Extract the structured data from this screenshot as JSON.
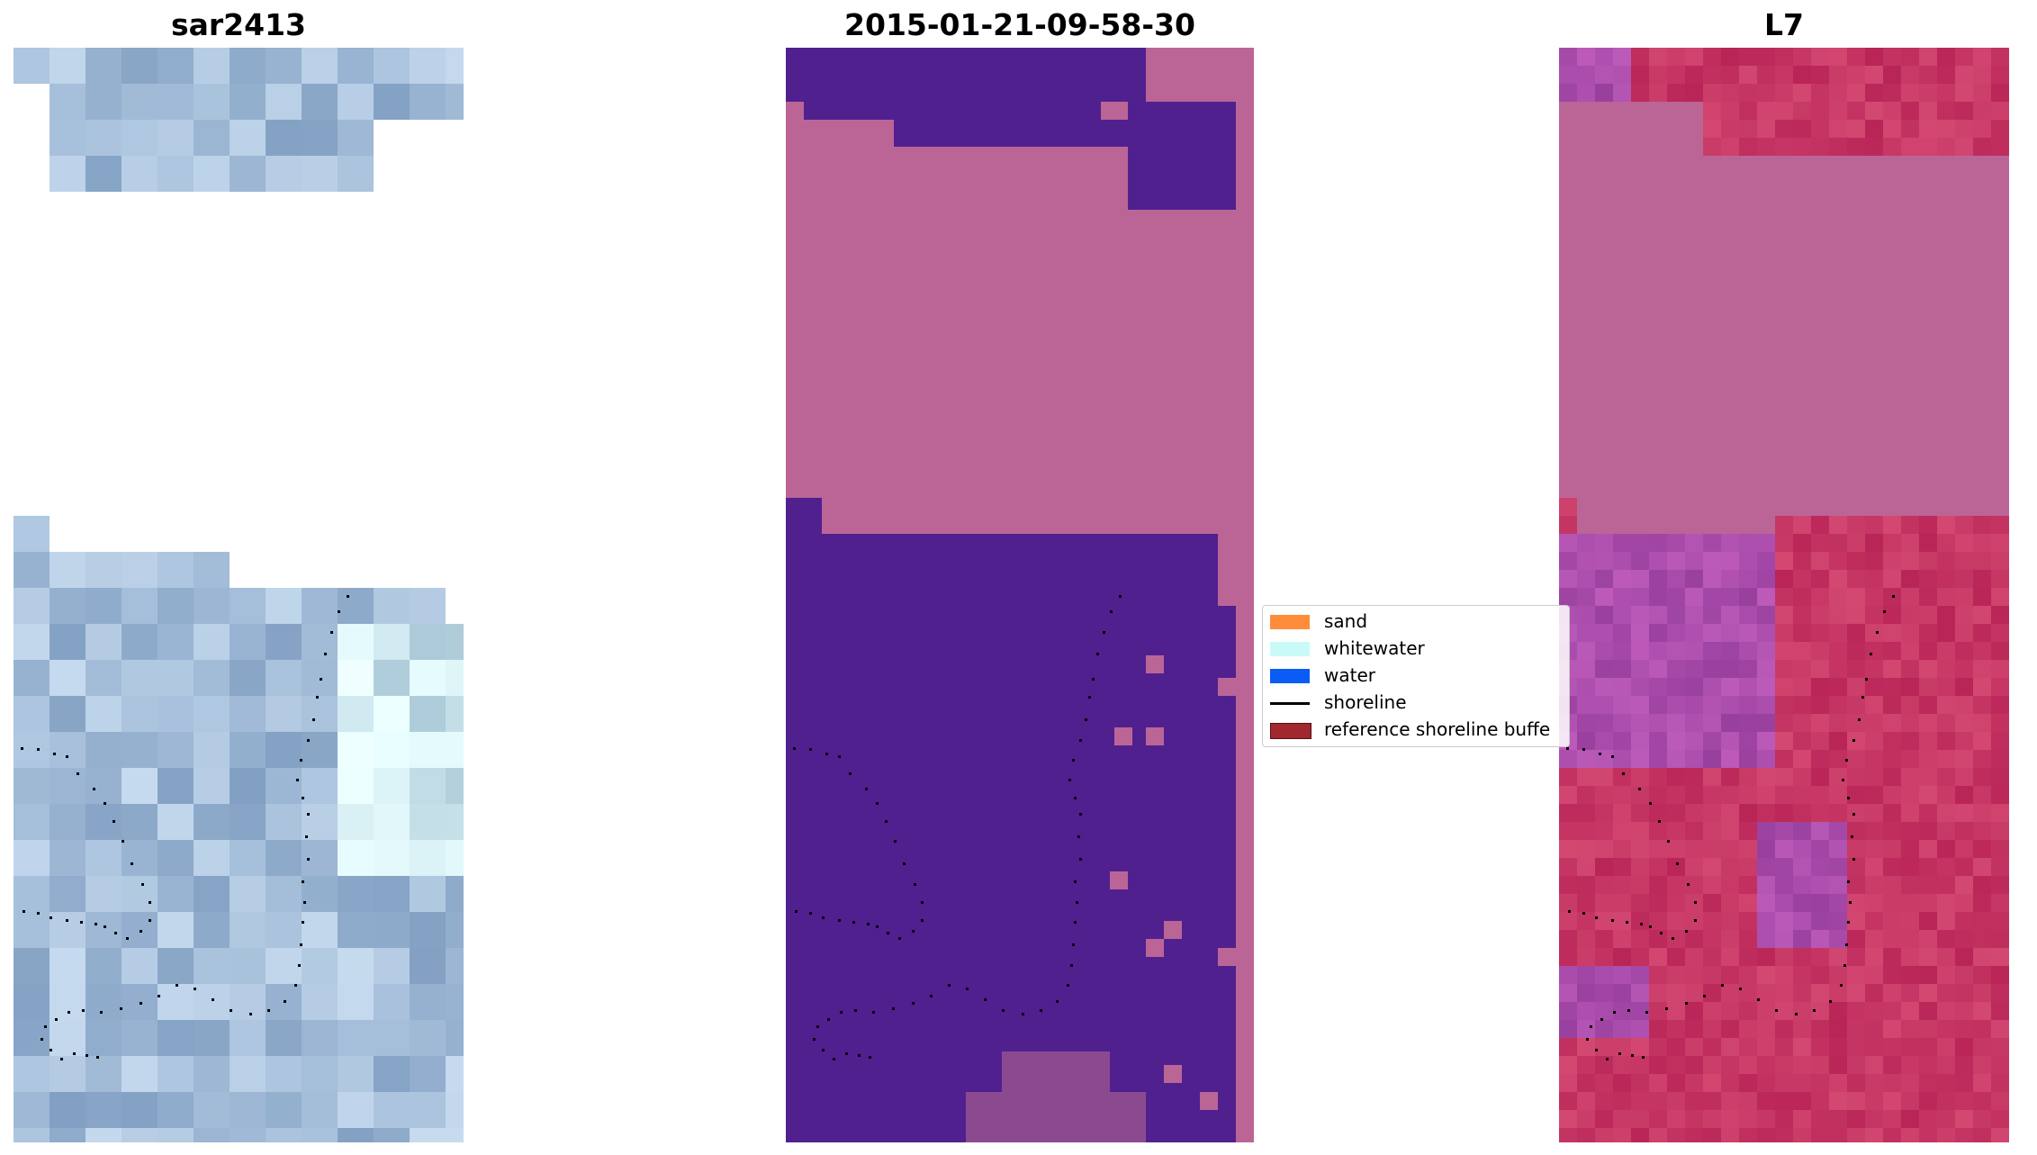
{
  "panels": [
    {
      "title": "sar2413"
    },
    {
      "title": "2015-01-21-09-58-30"
    },
    {
      "title": "L7"
    }
  ],
  "legend": {
    "items": [
      {
        "label": "sand",
        "color": "#ff8c3a",
        "kind": "patch"
      },
      {
        "label": "whitewater",
        "color": "#c8fbf8",
        "kind": "patch"
      },
      {
        "label": "water",
        "color": "#0a5cf5",
        "kind": "patch"
      },
      {
        "label": "shoreline",
        "color": "#000000",
        "kind": "line"
      },
      {
        "label": "reference shoreline buffe",
        "color": "#a0282e",
        "kind": "patch"
      }
    ]
  },
  "colors": {
    "masked_pink": "#bb6597",
    "water_class": "#50208f",
    "rgb_tint": "#9ab4d3",
    "l7_red": "#c2144a",
    "l7_purple": "#8a40a6"
  }
}
